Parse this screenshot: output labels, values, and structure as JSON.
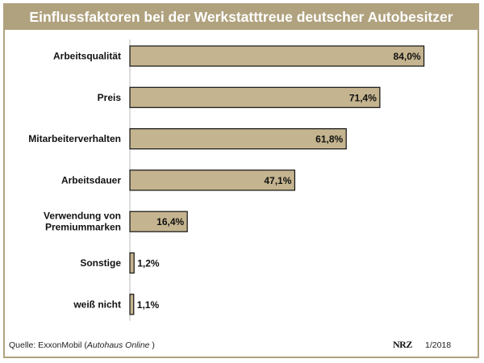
{
  "title": "Einflussfaktoren bei der Werkstatttreue deutscher Autobesitzer",
  "footer": {
    "source_prefix": "Quelle: ExxonMobil (",
    "source_italic": "Autohaus Online",
    "source_suffix": " )",
    "logo": "NRZ",
    "issue": "1/2018"
  },
  "colors": {
    "frame": "#b0a27e",
    "bar": "#c4b48f",
    "bar_border": "#111111",
    "title_text": "#ffffff"
  },
  "chart_data": {
    "type": "bar",
    "orientation": "horizontal",
    "title": "Einflussfaktoren bei der Werkstatttreue deutscher Autobesitzer",
    "categories": [
      "Arbeitsqualität",
      "Preis",
      "Mitarbeiterverhalten",
      "Arbeitsdauer",
      "Verwendung von Premiummarken",
      "Sonstige",
      "weiß nicht"
    ],
    "category_lines": [
      [
        "Arbeitsqualität"
      ],
      [
        "Preis"
      ],
      [
        "Mitarbeiterverhalten"
      ],
      [
        "Arbeitsdauer"
      ],
      [
        "Verwendung von",
        "Premiummarken"
      ],
      [
        "Sonstige"
      ],
      [
        "weiß nicht"
      ]
    ],
    "values": [
      84.0,
      71.4,
      61.8,
      47.1,
      16.4,
      1.2,
      1.1
    ],
    "value_labels": [
      "84,0%",
      "71,4%",
      "61,8%",
      "47,1%",
      "16,4%",
      "1,2%",
      "1,1%"
    ],
    "xlim": [
      0,
      100
    ],
    "grid": false,
    "legend": "none"
  }
}
